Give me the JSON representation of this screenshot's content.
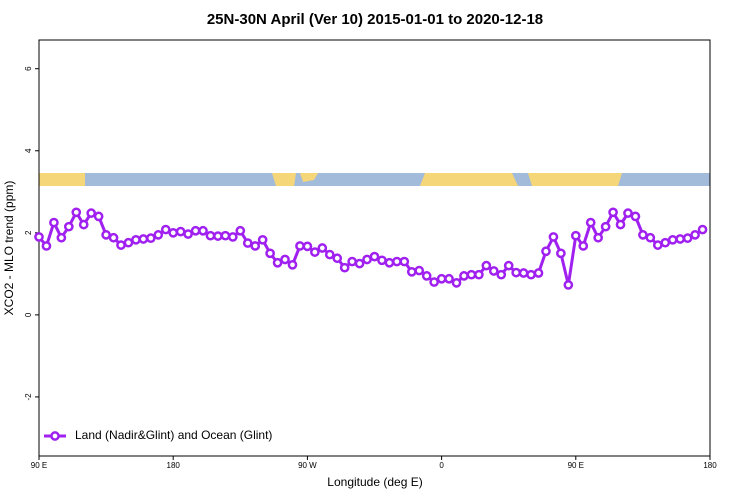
{
  "chart_data": {
    "type": "line",
    "title": "25N-30N April (Ver 10)   2015-01-01 to 2020-12-18",
    "x_label": "Longitude (deg E)",
    "y_label": "XCO2 - MLO trend (ppm)",
    "x": [
      90,
      95,
      100,
      105,
      110,
      115,
      120,
      125,
      130,
      135,
      140,
      145,
      150,
      155,
      160,
      165,
      170,
      175,
      180,
      185,
      190,
      195,
      200,
      205,
      210,
      215,
      220,
      225,
      230,
      235,
      240,
      245,
      250,
      255,
      260,
      265,
      270,
      275,
      280,
      285,
      290,
      295,
      300,
      305,
      310,
      315,
      320,
      325,
      330,
      335,
      340,
      345,
      350,
      355,
      360,
      365,
      370,
      375,
      380,
      385,
      390,
      395,
      400,
      405,
      410,
      415,
      420,
      425,
      430,
      435,
      440,
      445,
      450,
      455,
      460,
      465,
      470,
      475,
      480,
      485,
      490,
      495,
      500,
      505,
      510,
      515,
      520,
      525,
      530,
      535
    ],
    "series": [
      {
        "name": "Land (Nadir&Glint) and Ocean (Glint)",
        "color": "#a020f0",
        "values": [
          1.9,
          1.68,
          2.25,
          1.88,
          2.15,
          2.5,
          2.2,
          2.48,
          2.4,
          1.95,
          1.88,
          1.7,
          1.76,
          1.83,
          1.85,
          1.87,
          1.95,
          2.08,
          2.0,
          2.03,
          1.97,
          2.05,
          2.05,
          1.93,
          1.92,
          1.93,
          1.9,
          2.05,
          1.75,
          1.68,
          1.83,
          1.5,
          1.27,
          1.35,
          1.22,
          1.68,
          1.67,
          1.53,
          1.63,
          1.47,
          1.38,
          1.15,
          1.3,
          1.25,
          1.35,
          1.42,
          1.33,
          1.27,
          1.3,
          1.3,
          1.05,
          1.08,
          0.95,
          0.8,
          0.88,
          0.88,
          0.78,
          0.95,
          0.98,
          0.98,
          1.2,
          1.07,
          0.98,
          1.2,
          1.03,
          1.02,
          0.98,
          1.02,
          1.55,
          1.9,
          1.5,
          0.73,
          1.93,
          1.68,
          2.25,
          1.88,
          2.15,
          2.5,
          2.2,
          2.48,
          2.4,
          1.95,
          1.88,
          1.7,
          1.76,
          1.83,
          1.85,
          1.87,
          1.95,
          2.08
        ]
      }
    ],
    "xlim": [
      90,
      540
    ],
    "xticks": [
      {
        "value": 90,
        "label": "90 E"
      },
      180,
      {
        "value": 270,
        "label": "90 W"
      },
      {
        "value": 360,
        "label": "0"
      },
      {
        "value": 450,
        "label": "90 E"
      },
      {
        "value": 540,
        "label": "180"
      }
    ],
    "ylim": [
      -3.44,
      6.7
    ],
    "yticks": [
      -2,
      0,
      2,
      4,
      6
    ],
    "legend": "bottom-left"
  }
}
